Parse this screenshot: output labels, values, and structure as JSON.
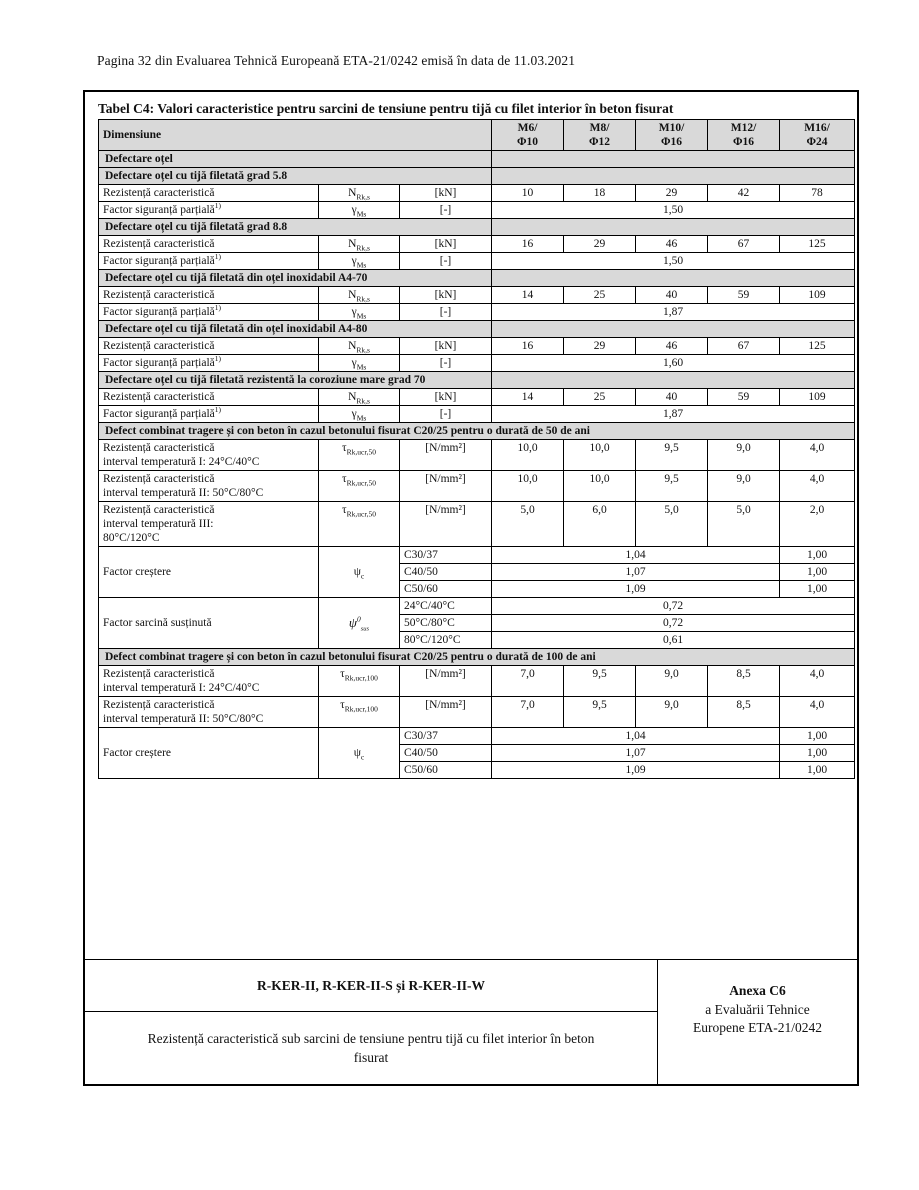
{
  "page": {
    "header_line": "Pagina 32 din Evaluarea Tehnică Europeană ETA-21/0242 emisă în data de 11.03.2021"
  },
  "colors": {
    "section_bg": "#d9d9d9",
    "border": "#000000",
    "text": "#111111"
  },
  "table": {
    "title": "Tabel C4: Valori caracteristice pentru sarcini de tensiune pentru tijă cu filet interior în beton fisurat",
    "header": {
      "dimension_label": "Dimensiune",
      "size_columns": [
        "M6/\nΦ10",
        "M8/\nΦ12",
        "M10/\nΦ16",
        "M12/\nΦ16",
        "M16/\nΦ24"
      ]
    },
    "rows": [
      {
        "type": "section",
        "split": true,
        "text": "Defectare oțel"
      },
      {
        "type": "section",
        "split": true,
        "text": "Defectare oțel cu tijă filetată grad 5.8"
      },
      {
        "type": "data",
        "label": "Rezistență caracteristică",
        "symbol": {
          "base": "N",
          "sub": "Rk,s"
        },
        "unit": "[kN]",
        "values": [
          "10",
          "18",
          "29",
          "42",
          "78"
        ]
      },
      {
        "type": "data",
        "label": "Factor siguranță parțială",
        "label_sup": "1)",
        "symbol": {
          "base": "γ",
          "sub": "Ms"
        },
        "unit": "[-]",
        "merged_value": "1,50"
      },
      {
        "type": "section",
        "split": true,
        "text": "Defectare oțel cu tijă filetată grad 8.8"
      },
      {
        "type": "data",
        "label": "Rezistență caracteristică",
        "symbol": {
          "base": "N",
          "sub": "Rk,s"
        },
        "unit": "[kN]",
        "values": [
          "16",
          "29",
          "46",
          "67",
          "125"
        ]
      },
      {
        "type": "data",
        "label": "Factor siguranță parțială",
        "label_sup": "1)",
        "symbol": {
          "base": "γ",
          "sub": "Ms"
        },
        "unit": "[-]",
        "merged_value": "1,50"
      },
      {
        "type": "section",
        "split": true,
        "text": "Defectare oțel cu tijă filetată din oțel inoxidabil A4-70"
      },
      {
        "type": "data",
        "label": "Rezistență caracteristică",
        "symbol": {
          "base": "N",
          "sub": "Rk,s"
        },
        "unit": "[kN]",
        "values": [
          "14",
          "25",
          "40",
          "59",
          "109"
        ]
      },
      {
        "type": "data",
        "label": "Factor siguranță parțială",
        "label_sup": "1)",
        "symbol": {
          "base": "γ",
          "sub": "Ms"
        },
        "unit": "[-]",
        "merged_value": "1,87"
      },
      {
        "type": "section",
        "split": true,
        "text": "Defectare oțel cu tijă filetată din oțel inoxidabil A4-80"
      },
      {
        "type": "data",
        "label": "Rezistență caracteristică",
        "symbol": {
          "base": "N",
          "sub": "Rk,s"
        },
        "unit": "[kN]",
        "values": [
          "16",
          "29",
          "46",
          "67",
          "125"
        ]
      },
      {
        "type": "data",
        "label": "Factor siguranță parțială",
        "label_sup": "1)",
        "symbol": {
          "base": "γ",
          "sub": "Ms"
        },
        "unit": "[-]",
        "merged_value": "1,60"
      },
      {
        "type": "section",
        "split": true,
        "text": "Defectare oțel cu tijă filetată rezistentă la coroziune mare grad 70"
      },
      {
        "type": "data",
        "label": "Rezistență caracteristică",
        "symbol": {
          "base": "N",
          "sub": "Rk,s"
        },
        "unit": "[kN]",
        "values": [
          "14",
          "25",
          "40",
          "59",
          "109"
        ]
      },
      {
        "type": "data",
        "label": "Factor siguranță parțială",
        "label_sup": "1)",
        "symbol": {
          "base": "γ",
          "sub": "Ms"
        },
        "unit": "[-]",
        "merged_value": "1,87"
      },
      {
        "type": "section",
        "split": false,
        "text": "Defect combinat tragere și con beton în cazul betonului fisurat C20/25 pentru o durată de 50 de ani"
      },
      {
        "type": "data",
        "top": true,
        "label": "Rezistență caracteristică\ninterval temperatură I: 24°C/40°C",
        "symbol": {
          "base": "τ",
          "sub": "Rk,ucr,50"
        },
        "unit": "[N/mm²]",
        "values": [
          "10,0",
          "10,0",
          "9,5",
          "9,0",
          "4,0"
        ]
      },
      {
        "type": "data",
        "top": true,
        "label": "Rezistență caracteristică\ninterval temperatură II: 50°C/80°C",
        "symbol": {
          "base": "τ",
          "sub": "Rk,ucr,50"
        },
        "unit": "[N/mm²]",
        "values": [
          "10,0",
          "10,0",
          "9,5",
          "9,0",
          "4,0"
        ]
      },
      {
        "type": "data",
        "top": true,
        "label": "Rezistență caracteristică\ninterval temperatură III:\n80°C/120°C",
        "symbol": {
          "base": "τ",
          "sub": "Rk,ucr,50"
        },
        "unit": "[N/mm²]",
        "values": [
          "5,0",
          "6,0",
          "5,0",
          "5,0",
          "2,0"
        ]
      },
      {
        "type": "group",
        "label": "Factor creștere",
        "symbol": {
          "base": "ψ",
          "sub": "c"
        },
        "rows": [
          {
            "key": "C30/37",
            "value": "1,04",
            "last": "1,00"
          },
          {
            "key": "C40/50",
            "value": "1,07",
            "last": "1,00"
          },
          {
            "key": "C50/60",
            "value": "1,09",
            "last": "1,00"
          }
        ]
      },
      {
        "type": "group",
        "label": "Factor sarcină susținută",
        "symbol": {
          "base": "ψ",
          "sup": "0",
          "sub": "sus",
          "style": "script"
        },
        "rows": [
          {
            "key": "24°C/40°C",
            "value": "0,72"
          },
          {
            "key": "50°C/80°C",
            "value": "0,72"
          },
          {
            "key": "80°C/120°C",
            "value": "0,61"
          }
        ]
      },
      {
        "type": "section",
        "split": false,
        "text": "Defect combinat tragere și con beton în cazul betonului fisurat C20/25 pentru o durată de 100 de ani"
      },
      {
        "type": "data",
        "top": true,
        "label": "Rezistență caracteristică\ninterval temperatură I: 24°C/40°C",
        "symbol": {
          "base": "τ",
          "sub": "Rk,ucr,100"
        },
        "unit": "[N/mm²]",
        "values": [
          "7,0",
          "9,5",
          "9,0",
          "8,5",
          "4,0"
        ]
      },
      {
        "type": "data",
        "top": true,
        "label": "Rezistență caracteristică\ninterval temperatură II: 50°C/80°C",
        "symbol": {
          "base": "τ",
          "sub": "Rk,ucr,100"
        },
        "unit": "[N/mm²]",
        "values": [
          "7,0",
          "9,5",
          "9,0",
          "8,5",
          "4,0"
        ]
      },
      {
        "type": "group",
        "label": "Factor creștere",
        "symbol": {
          "base": "ψ",
          "sub": "c"
        },
        "rows": [
          {
            "key": "C30/37",
            "value": "1,04",
            "last": "1,00"
          },
          {
            "key": "C40/50",
            "value": "1,07",
            "last": "1,00"
          },
          {
            "key": "C50/60",
            "value": "1,09",
            "last": "1,00"
          }
        ]
      }
    ]
  },
  "footer": {
    "product_names": "R-KER-II, R-KER-II-S și R-KER-II-W",
    "caption": "Rezistență caracteristică sub sarcini de tensiune pentru tijă cu filet interior în beton\nfisurat",
    "annex_title": "Anexa C6",
    "annex_line2": "a Evaluării Tehnice",
    "annex_line3": "Europene ETA-21/0242"
  }
}
